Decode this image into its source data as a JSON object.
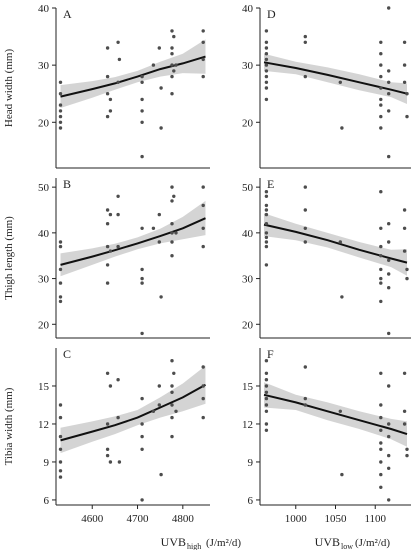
{
  "x_axis_titles": {
    "left": {
      "main": "UVB",
      "sub": "high",
      "units": "(J/m²/d)"
    },
    "right": {
      "main": "UVB",
      "sub": "low",
      "units": "(J/m²/d)"
    }
  },
  "chart_data": [
    {
      "id": "A",
      "panel_label": "A",
      "type": "scatter",
      "row": 0,
      "col": 0,
      "ylabel": "Head width (mm)",
      "xlim": [
        4520,
        4860
      ],
      "ylim": [
        12,
        40
      ],
      "xticks": [],
      "yticks": [
        20,
        30,
        40
      ],
      "fit": {
        "x": [
          4530,
          4600,
          4650,
          4700,
          4750,
          4800,
          4850
        ],
        "y": [
          24.5,
          25.8,
          26.8,
          28.0,
          29.3,
          30.3,
          31.5
        ]
      },
      "band": {
        "upper": [
          26.5,
          27.2,
          27.9,
          29.0,
          30.6,
          32.0,
          34.5
        ],
        "lower": [
          22.5,
          24.3,
          25.7,
          27.0,
          28.0,
          28.6,
          28.5
        ]
      },
      "points": [
        [
          4530,
          27
        ],
        [
          4530,
          25
        ],
        [
          4530,
          23
        ],
        [
          4530,
          21
        ],
        [
          4530,
          20
        ],
        [
          4530,
          19
        ],
        [
          4530,
          22
        ],
        [
          4634,
          33
        ],
        [
          4634,
          28
        ],
        [
          4634,
          25
        ],
        [
          4634,
          21
        ],
        [
          4640,
          24
        ],
        [
          4640,
          22
        ],
        [
          4657,
          34
        ],
        [
          4657,
          27
        ],
        [
          4660,
          31
        ],
        [
          4710,
          28
        ],
        [
          4710,
          27
        ],
        [
          4710,
          24
        ],
        [
          4710,
          22
        ],
        [
          4710,
          20
        ],
        [
          4710,
          14
        ],
        [
          4735,
          30
        ],
        [
          4748,
          33
        ],
        [
          4752,
          26
        ],
        [
          4752,
          19
        ],
        [
          4776,
          36
        ],
        [
          4776,
          33
        ],
        [
          4776,
          32
        ],
        [
          4776,
          30
        ],
        [
          4776,
          28
        ],
        [
          4776,
          25
        ],
        [
          4780,
          35
        ],
        [
          4780,
          29
        ],
        [
          4785,
          30
        ],
        [
          4845,
          36
        ],
        [
          4845,
          34
        ],
        [
          4845,
          31
        ],
        [
          4845,
          28
        ]
      ]
    },
    {
      "id": "D",
      "panel_label": "D",
      "type": "scatter",
      "row": 0,
      "col": 1,
      "ylabel": "",
      "xlim": [
        955,
        1145
      ],
      "ylim": [
        12,
        40
      ],
      "xticks": [],
      "yticks": [
        20,
        30,
        40
      ],
      "fit": {
        "x": [
          960,
          1000,
          1040,
          1080,
          1120,
          1140
        ],
        "y": [
          30.5,
          29.5,
          28.3,
          27.0,
          25.7,
          25.0
        ]
      },
      "band": {
        "upper": [
          32.0,
          30.6,
          29.6,
          28.4,
          27.0,
          26.8
        ],
        "lower": [
          29.0,
          28.4,
          27.0,
          25.6,
          24.4,
          23.2
        ]
      },
      "points": [
        [
          963,
          36
        ],
        [
          963,
          34
        ],
        [
          963,
          33
        ],
        [
          963,
          32
        ],
        [
          963,
          31
        ],
        [
          963,
          30
        ],
        [
          963,
          29
        ],
        [
          963,
          28
        ],
        [
          963,
          27
        ],
        [
          963,
          26
        ],
        [
          963,
          24
        ],
        [
          1012,
          35
        ],
        [
          1012,
          34
        ],
        [
          1012,
          28
        ],
        [
          1056,
          27
        ],
        [
          1058,
          19
        ],
        [
          1107,
          34
        ],
        [
          1107,
          32
        ],
        [
          1107,
          30
        ],
        [
          1107,
          28
        ],
        [
          1107,
          26
        ],
        [
          1107,
          24
        ],
        [
          1107,
          23
        ],
        [
          1107,
          21
        ],
        [
          1107,
          19
        ],
        [
          1117,
          40
        ],
        [
          1117,
          29
        ],
        [
          1117,
          27
        ],
        [
          1117,
          25
        ],
        [
          1117,
          22
        ],
        [
          1117,
          14
        ],
        [
          1137,
          34
        ],
        [
          1137,
          30
        ],
        [
          1137,
          27
        ],
        [
          1140,
          25
        ],
        [
          1140,
          21
        ]
      ]
    },
    {
      "id": "B",
      "panel_label": "B",
      "type": "scatter",
      "row": 1,
      "col": 0,
      "ylabel": "Thigh length (mm)",
      "xlim": [
        4520,
        4860
      ],
      "ylim": [
        17,
        52
      ],
      "xticks": [],
      "yticks": [
        20,
        30,
        40,
        50
      ],
      "fit": {
        "x": [
          4530,
          4600,
          4650,
          4700,
          4750,
          4800,
          4850
        ],
        "y": [
          33.0,
          34.8,
          36.2,
          37.7,
          39.3,
          41.0,
          43.2
        ]
      },
      "band": {
        "upper": [
          35.5,
          36.6,
          37.6,
          39.0,
          40.9,
          43.5,
          47.0
        ],
        "lower": [
          30.5,
          33.0,
          34.8,
          36.4,
          37.7,
          38.6,
          39.5
        ]
      },
      "points": [
        [
          4530,
          38
        ],
        [
          4530,
          37
        ],
        [
          4530,
          32
        ],
        [
          4530,
          29
        ],
        [
          4530,
          26
        ],
        [
          4530,
          25
        ],
        [
          4634,
          45
        ],
        [
          4634,
          42
        ],
        [
          4634,
          37
        ],
        [
          4634,
          33
        ],
        [
          4634,
          29
        ],
        [
          4640,
          44
        ],
        [
          4640,
          36
        ],
        [
          4657,
          48
        ],
        [
          4657,
          44
        ],
        [
          4657,
          37
        ],
        [
          4710,
          41
        ],
        [
          4710,
          32
        ],
        [
          4710,
          30
        ],
        [
          4710,
          29
        ],
        [
          4710,
          18
        ],
        [
          4735,
          41
        ],
        [
          4748,
          44
        ],
        [
          4748,
          38
        ],
        [
          4752,
          26
        ],
        [
          4776,
          50
        ],
        [
          4776,
          47
        ],
        [
          4776,
          42
        ],
        [
          4776,
          40
        ],
        [
          4776,
          38
        ],
        [
          4776,
          35
        ],
        [
          4780,
          48
        ],
        [
          4785,
          40
        ],
        [
          4845,
          50
        ],
        [
          4845,
          46
        ],
        [
          4845,
          41
        ],
        [
          4845,
          37
        ]
      ]
    },
    {
      "id": "E",
      "panel_label": "E",
      "type": "scatter",
      "row": 1,
      "col": 1,
      "ylabel": "",
      "xlim": [
        955,
        1145
      ],
      "ylim": [
        17,
        52
      ],
      "xticks": [],
      "yticks": [
        20,
        30,
        40,
        50
      ],
      "fit": {
        "x": [
          960,
          1000,
          1040,
          1080,
          1120,
          1140
        ],
        "y": [
          41.8,
          40.2,
          38.4,
          36.3,
          34.4,
          33.5
        ]
      },
      "band": {
        "upper": [
          44.3,
          42.0,
          40.0,
          38.0,
          36.3,
          36.4
        ],
        "lower": [
          39.3,
          38.4,
          36.8,
          34.6,
          32.5,
          30.6
        ]
      },
      "points": [
        [
          963,
          49
        ],
        [
          963,
          48
        ],
        [
          963,
          46
        ],
        [
          963,
          45
        ],
        [
          963,
          44
        ],
        [
          963,
          42
        ],
        [
          963,
          40
        ],
        [
          963,
          39
        ],
        [
          963,
          38
        ],
        [
          963,
          37
        ],
        [
          963,
          33
        ],
        [
          1012,
          50
        ],
        [
          1012,
          45
        ],
        [
          1012,
          41
        ],
        [
          1012,
          38
        ],
        [
          1056,
          38
        ],
        [
          1058,
          26
        ],
        [
          1107,
          49
        ],
        [
          1107,
          41
        ],
        [
          1107,
          37
        ],
        [
          1107,
          35
        ],
        [
          1107,
          32
        ],
        [
          1107,
          30
        ],
        [
          1107,
          29
        ],
        [
          1107,
          25
        ],
        [
          1117,
          42
        ],
        [
          1117,
          38
        ],
        [
          1117,
          34
        ],
        [
          1117,
          31
        ],
        [
          1117,
          28
        ],
        [
          1117,
          18
        ],
        [
          1137,
          45
        ],
        [
          1137,
          41
        ],
        [
          1137,
          36
        ],
        [
          1140,
          32
        ],
        [
          1140,
          30
        ]
      ]
    },
    {
      "id": "C",
      "panel_label": "C",
      "type": "scatter",
      "row": 2,
      "col": 0,
      "ylabel": "Tibia width (mm)",
      "xlim": [
        4520,
        4860
      ],
      "ylim": [
        5.6,
        18
      ],
      "xticks": [
        4600,
        4700,
        4800
      ],
      "yticks": [
        6,
        9,
        12,
        15
      ],
      "fit": {
        "x": [
          4530,
          4600,
          4650,
          4700,
          4750,
          4800,
          4850
        ],
        "y": [
          10.7,
          11.4,
          11.9,
          12.5,
          13.3,
          14.1,
          15.1
        ]
      },
      "band": {
        "upper": [
          11.7,
          12.2,
          12.6,
          13.1,
          14.1,
          15.2,
          16.6
        ],
        "lower": [
          9.7,
          10.6,
          11.2,
          11.9,
          12.5,
          13.0,
          13.6
        ]
      },
      "points": [
        [
          4530,
          13.5
        ],
        [
          4530,
          12.5
        ],
        [
          4530,
          11
        ],
        [
          4530,
          10
        ],
        [
          4530,
          9
        ],
        [
          4530,
          8.3
        ],
        [
          4530,
          7.8
        ],
        [
          4634,
          16
        ],
        [
          4634,
          12
        ],
        [
          4634,
          10
        ],
        [
          4634,
          9.5
        ],
        [
          4640,
          15
        ],
        [
          4640,
          9
        ],
        [
          4657,
          15.5
        ],
        [
          4657,
          12.5
        ],
        [
          4660,
          9
        ],
        [
          4710,
          14
        ],
        [
          4710,
          12
        ],
        [
          4710,
          11
        ],
        [
          4710,
          10
        ],
        [
          4710,
          6
        ],
        [
          4735,
          13
        ],
        [
          4748,
          15
        ],
        [
          4748,
          13.5
        ],
        [
          4752,
          8
        ],
        [
          4776,
          17
        ],
        [
          4776,
          15
        ],
        [
          4776,
          14.5
        ],
        [
          4776,
          13.5
        ],
        [
          4776,
          12.5
        ],
        [
          4776,
          11
        ],
        [
          4780,
          16
        ],
        [
          4785,
          13
        ],
        [
          4845,
          16.5
        ],
        [
          4845,
          15
        ],
        [
          4845,
          14
        ],
        [
          4845,
          12.5
        ]
      ]
    },
    {
      "id": "F",
      "panel_label": "F",
      "type": "scatter",
      "row": 2,
      "col": 1,
      "ylabel": "",
      "xlim": [
        955,
        1145
      ],
      "ylim": [
        5.6,
        18
      ],
      "xticks": [
        1000,
        1050,
        1100
      ],
      "yticks": [
        6,
        9,
        12,
        15
      ],
      "fit": {
        "x": [
          960,
          1000,
          1040,
          1080,
          1120,
          1140
        ],
        "y": [
          14.3,
          13.7,
          13.0,
          12.3,
          11.6,
          11.2
        ]
      },
      "band": {
        "upper": [
          15.3,
          14.3,
          13.7,
          13.0,
          12.4,
          12.2
        ],
        "lower": [
          13.3,
          13.1,
          12.3,
          11.6,
          10.8,
          10.2
        ]
      },
      "points": [
        [
          963,
          17
        ],
        [
          963,
          16
        ],
        [
          963,
          15.5
        ],
        [
          963,
          15
        ],
        [
          963,
          14.5
        ],
        [
          963,
          14
        ],
        [
          963,
          13.5
        ],
        [
          963,
          13
        ],
        [
          963,
          12
        ],
        [
          963,
          11.5
        ],
        [
          1012,
          16.5
        ],
        [
          1012,
          14
        ],
        [
          1012,
          13.5
        ],
        [
          1056,
          13
        ],
        [
          1058,
          8
        ],
        [
          1107,
          16
        ],
        [
          1107,
          13.5
        ],
        [
          1107,
          12.5
        ],
        [
          1107,
          11.5
        ],
        [
          1107,
          10.5
        ],
        [
          1107,
          10
        ],
        [
          1107,
          9
        ],
        [
          1107,
          8
        ],
        [
          1107,
          7
        ],
        [
          1117,
          15
        ],
        [
          1117,
          12
        ],
        [
          1117,
          11
        ],
        [
          1117,
          9.5
        ],
        [
          1117,
          8.5
        ],
        [
          1117,
          6
        ],
        [
          1137,
          16
        ],
        [
          1137,
          13
        ],
        [
          1137,
          12
        ],
        [
          1140,
          10
        ],
        [
          1140,
          9.5
        ]
      ]
    }
  ]
}
